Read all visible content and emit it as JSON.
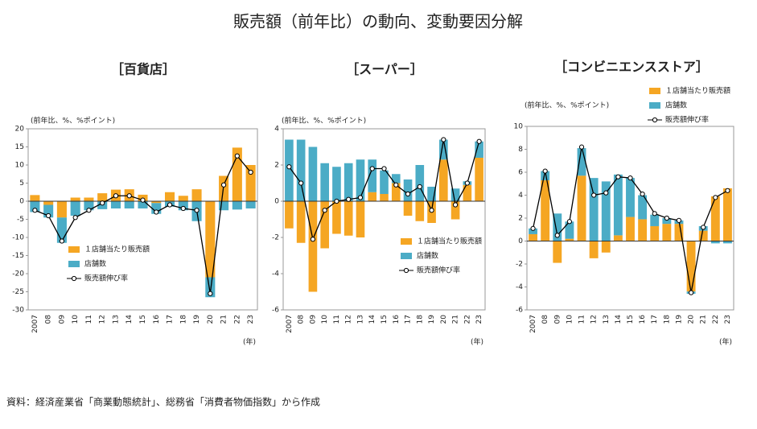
{
  "title": "販売額（前年比）の動向、変動要因分解",
  "source": "資料：経済産業省「商業動態統計」、総務省「消費者物価指数」から作成",
  "chart_data": [
    {
      "type": "bar",
      "stacked": true,
      "title": "［百貨店］",
      "y_label": "(前年比、%、%ポイント)",
      "x_label": "(年)",
      "categories": [
        "2007",
        "08",
        "09",
        "10",
        "11",
        "12",
        "13",
        "14",
        "15",
        "16",
        "17",
        "18",
        "19",
        "20",
        "21",
        "22",
        "23"
      ],
      "ylim": [
        -30,
        20
      ],
      "yticks": [
        -30,
        -25,
        -20,
        -15,
        -10,
        -5,
        0,
        5,
        10,
        15,
        20
      ],
      "legend": "lower left",
      "series": [
        {
          "name": "１店舗当たり販売額",
          "type": "bar",
          "color": "#f5a623",
          "values": [
            1.7,
            -1,
            -4.5,
            1,
            1,
            2.2,
            3.2,
            3.3,
            1.8,
            -0.5,
            2.5,
            1.5,
            3.3,
            -21,
            7,
            14.8,
            10
          ]
        },
        {
          "name": "店舗数",
          "type": "bar",
          "color": "#4bacc6",
          "values": [
            -3,
            -3.5,
            -7,
            -4,
            -2.5,
            -2.2,
            -2,
            -2,
            -2,
            -3,
            -1.5,
            -2.5,
            -5.5,
            -5.5,
            -2.5,
            -2.3,
            -2
          ]
        },
        {
          "name": "販売額伸び率",
          "type": "line",
          "color": "#000000",
          "values": [
            -2.5,
            -4,
            -11,
            -4.5,
            -2.5,
            -0.5,
            1.5,
            1.5,
            0.3,
            -3,
            -1,
            -2,
            -2.5,
            -25.5,
            4.5,
            12.5,
            8
          ]
        }
      ]
    },
    {
      "type": "bar",
      "stacked": true,
      "title": "［スーパー］",
      "y_label": "(前年比、%、%ポイント)",
      "x_label": "(年)",
      "categories": [
        "2007",
        "08",
        "09",
        "10",
        "11",
        "12",
        "13",
        "14",
        "15",
        "16",
        "17",
        "18",
        "19",
        "20",
        "21",
        "22",
        "23"
      ],
      "ylim": [
        -6,
        4
      ],
      "yticks": [
        -6,
        -4,
        -2,
        0,
        2,
        4
      ],
      "legend": "lower right",
      "series": [
        {
          "name": "１店舗当たり販売額",
          "type": "bar",
          "color": "#f5a623",
          "values": [
            -1.5,
            -2.3,
            -5,
            -2.6,
            -1.8,
            -1.9,
            -2,
            0.5,
            0.4,
            1,
            -0.8,
            -1.1,
            -1.2,
            2.3,
            -1,
            0.9,
            2.4
          ]
        },
        {
          "name": "店舗数",
          "type": "bar",
          "color": "#4bacc6",
          "values": [
            3.4,
            3.4,
            3,
            2.1,
            1.9,
            2.1,
            2.3,
            1.8,
            1.3,
            0.5,
            1.2,
            2,
            0.8,
            1.1,
            0.7,
            0.2,
            0.9
          ]
        },
        {
          "name": "販売額伸び率",
          "type": "line",
          "color": "#000000",
          "values": [
            1.9,
            1,
            -2.1,
            -0.5,
            0,
            0.1,
            0.2,
            1.8,
            1.8,
            0.9,
            0.4,
            0.8,
            -0.5,
            3.4,
            -0.2,
            1,
            3.3
          ]
        }
      ]
    },
    {
      "type": "bar",
      "stacked": true,
      "title": "［コンビニエンスストア］",
      "y_label": "(前年比、%、%ポイント)",
      "x_label": "(年)",
      "categories": [
        "2007",
        "08",
        "09",
        "10",
        "11",
        "12",
        "13",
        "14",
        "15",
        "16",
        "17",
        "18",
        "19",
        "20",
        "21",
        "22",
        "23"
      ],
      "ylim": [
        -6,
        10
      ],
      "yticks": [
        -6,
        -4,
        -2,
        0,
        2,
        4,
        6,
        8,
        10
      ],
      "legend": "upper right",
      "series": [
        {
          "name": "１店舗当たり販売額",
          "type": "bar",
          "color": "#f5a623",
          "values": [
            0.6,
            5.3,
            -1.9,
            0.2,
            5.7,
            -1.5,
            -1,
            0.5,
            2.1,
            1.9,
            1.3,
            1.5,
            1.5,
            -4.4,
            0.9,
            3.9,
            4.6
          ]
        },
        {
          "name": "店舗数",
          "type": "bar",
          "color": "#4bacc6",
          "values": [
            0.5,
            0.8,
            2.4,
            1.5,
            2.4,
            5.5,
            5.2,
            5.3,
            3.4,
            2.1,
            1,
            0.5,
            0.3,
            -0.2,
            0.4,
            -0.2,
            -0.2
          ]
        },
        {
          "name": "販売額伸び率",
          "type": "line",
          "color": "#000000",
          "values": [
            1.1,
            6.1,
            0.5,
            1.7,
            8.2,
            4,
            4.2,
            5.6,
            5.5,
            4.1,
            2.4,
            2,
            1.8,
            -4.5,
            1.2,
            3.8,
            4.4
          ]
        }
      ]
    }
  ]
}
